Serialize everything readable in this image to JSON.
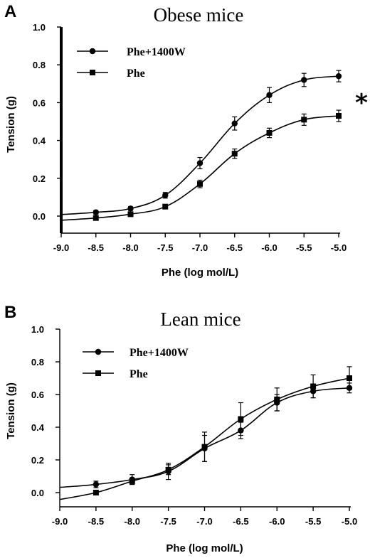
{
  "chart_data": [
    {
      "type": "line",
      "panel": "A",
      "title": "Obese mice",
      "xlabel": "Phe (log mol/L)",
      "ylabel": "Tension (g)",
      "xlim": [
        -9.0,
        -5.0
      ],
      "ylim": [
        0.0,
        1.0
      ],
      "x_ticks": [
        "-9.0",
        "-8.5",
        "-8.0",
        "-7.5",
        "-7.0",
        "-6.5",
        "-6.0",
        "-5.5",
        "-5.0"
      ],
      "y_ticks": [
        "1.0",
        "0.8",
        "0.6",
        "0.4",
        "0.2",
        "0.0"
      ],
      "annotation": "*",
      "legend_position": "top-left",
      "series": [
        {
          "name": "Phe+1400W",
          "marker": "circle",
          "x": [
            -8.5,
            -8.0,
            -7.5,
            -7.0,
            -6.5,
            -6.0,
            -5.5,
            -5.0
          ],
          "y": [
            0.02,
            0.04,
            0.11,
            0.28,
            0.49,
            0.64,
            0.72,
            0.74
          ],
          "err": [
            0.01,
            0.01,
            0.015,
            0.03,
            0.035,
            0.04,
            0.035,
            0.03
          ]
        },
        {
          "name": "Phe",
          "marker": "square",
          "x": [
            -8.5,
            -8.0,
            -7.5,
            -7.0,
            -6.5,
            -6.0,
            -5.5,
            -5.0
          ],
          "y": [
            -0.01,
            0.01,
            0.05,
            0.17,
            0.33,
            0.44,
            0.51,
            0.53
          ],
          "err": [
            0.01,
            0.01,
            0.01,
            0.02,
            0.025,
            0.025,
            0.03,
            0.03
          ]
        }
      ]
    },
    {
      "type": "line",
      "panel": "B",
      "title": "Lean mice",
      "xlabel": "Phe (log mol/L)",
      "ylabel": "Tension (g)",
      "xlim": [
        -9.0,
        -5.0
      ],
      "ylim": [
        0.0,
        1.0
      ],
      "x_ticks": [
        "-9.0",
        "-8.5",
        "-8.0",
        "-7.5",
        "-7.0",
        "-6.5",
        "-6.0",
        "-5.5",
        "-5.0"
      ],
      "y_ticks": [
        "1.0",
        "0.8",
        "0.6",
        "0.4",
        "0.2",
        "0.0"
      ],
      "legend_position": "top-left",
      "series": [
        {
          "name": "Phe+1400W",
          "marker": "circle",
          "x": [
            -8.5,
            -8.0,
            -7.5,
            -7.0,
            -6.5,
            -6.0,
            -5.5,
            -5.0
          ],
          "y": [
            0.05,
            0.08,
            0.13,
            0.27,
            0.38,
            0.55,
            0.62,
            0.64
          ],
          "err": [
            0.02,
            0.03,
            0.05,
            0.08,
            0.05,
            0.05,
            0.04,
            0.03
          ]
        },
        {
          "name": "Phe",
          "marker": "square",
          "x": [
            -8.5,
            -8.0,
            -7.5,
            -7.0,
            -6.5,
            -6.0,
            -5.5,
            -5.0
          ],
          "y": [
            0.0,
            0.07,
            0.14,
            0.28,
            0.45,
            0.57,
            0.65,
            0.7
          ],
          "err": [
            0.01,
            0.02,
            0.03,
            0.09,
            0.1,
            0.07,
            0.07,
            0.07
          ]
        }
      ]
    }
  ]
}
